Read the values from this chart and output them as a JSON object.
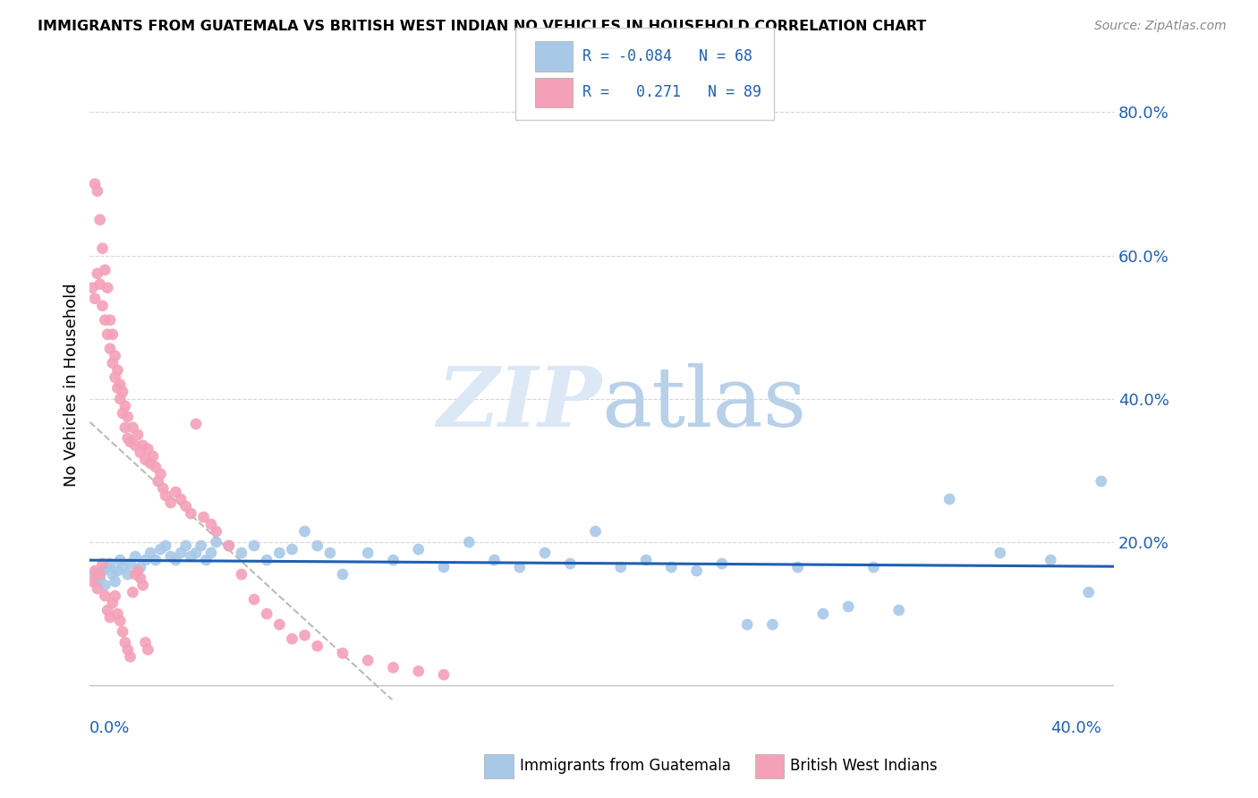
{
  "title": "IMMIGRANTS FROM GUATEMALA VS BRITISH WEST INDIAN NO VEHICLES IN HOUSEHOLD CORRELATION CHART",
  "source": "Source: ZipAtlas.com",
  "ylabel": "No Vehicles in Household",
  "xlim": [
    0.0,
    0.405
  ],
  "ylim": [
    -0.02,
    0.86
  ],
  "blue_color": "#a8c8e8",
  "pink_color": "#f4a0b8",
  "trend_blue_color": "#2060b0",
  "grid_color": "#cccccc",
  "watermark_color": "#dce8f5",
  "blue_R": -0.084,
  "blue_N": 68,
  "pink_R": 0.271,
  "pink_N": 89,
  "blue_scatter_x": [
    0.002,
    0.003,
    0.004,
    0.005,
    0.006,
    0.007,
    0.008,
    0.009,
    0.01,
    0.011,
    0.012,
    0.013,
    0.015,
    0.016,
    0.018,
    0.02,
    0.022,
    0.024,
    0.026,
    0.028,
    0.03,
    0.032,
    0.034,
    0.036,
    0.038,
    0.04,
    0.042,
    0.044,
    0.046,
    0.048,
    0.05,
    0.055,
    0.06,
    0.065,
    0.07,
    0.075,
    0.08,
    0.085,
    0.09,
    0.095,
    0.1,
    0.11,
    0.12,
    0.13,
    0.14,
    0.15,
    0.16,
    0.17,
    0.18,
    0.19,
    0.2,
    0.21,
    0.22,
    0.23,
    0.24,
    0.25,
    0.26,
    0.27,
    0.28,
    0.29,
    0.3,
    0.31,
    0.32,
    0.34,
    0.36,
    0.38,
    0.395,
    0.4
  ],
  "blue_scatter_y": [
    0.155,
    0.145,
    0.15,
    0.16,
    0.14,
    0.165,
    0.17,
    0.155,
    0.145,
    0.16,
    0.175,
    0.165,
    0.155,
    0.17,
    0.18,
    0.165,
    0.175,
    0.185,
    0.175,
    0.19,
    0.195,
    0.18,
    0.175,
    0.185,
    0.195,
    0.18,
    0.185,
    0.195,
    0.175,
    0.185,
    0.2,
    0.195,
    0.185,
    0.195,
    0.175,
    0.185,
    0.19,
    0.215,
    0.195,
    0.185,
    0.155,
    0.185,
    0.175,
    0.19,
    0.165,
    0.2,
    0.175,
    0.165,
    0.185,
    0.17,
    0.215,
    0.165,
    0.175,
    0.165,
    0.16,
    0.17,
    0.085,
    0.085,
    0.165,
    0.1,
    0.11,
    0.165,
    0.105,
    0.26,
    0.185,
    0.175,
    0.13,
    0.285
  ],
  "pink_scatter_x": [
    0.001,
    0.002,
    0.002,
    0.003,
    0.003,
    0.004,
    0.004,
    0.005,
    0.005,
    0.006,
    0.006,
    0.007,
    0.007,
    0.008,
    0.008,
    0.009,
    0.009,
    0.01,
    0.01,
    0.011,
    0.011,
    0.012,
    0.012,
    0.013,
    0.013,
    0.014,
    0.014,
    0.015,
    0.015,
    0.016,
    0.017,
    0.018,
    0.019,
    0.02,
    0.021,
    0.022,
    0.023,
    0.024,
    0.025,
    0.026,
    0.027,
    0.028,
    0.029,
    0.03,
    0.032,
    0.034,
    0.036,
    0.038,
    0.04,
    0.042,
    0.045,
    0.048,
    0.05,
    0.055,
    0.06,
    0.065,
    0.07,
    0.075,
    0.08,
    0.085,
    0.09,
    0.1,
    0.11,
    0.12,
    0.13,
    0.14,
    0.001,
    0.002,
    0.003,
    0.004,
    0.005,
    0.006,
    0.007,
    0.008,
    0.009,
    0.01,
    0.011,
    0.012,
    0.013,
    0.014,
    0.015,
    0.016,
    0.017,
    0.018,
    0.019,
    0.02,
    0.021,
    0.022,
    0.023
  ],
  "pink_scatter_y": [
    0.555,
    0.54,
    0.7,
    0.575,
    0.69,
    0.56,
    0.65,
    0.53,
    0.61,
    0.51,
    0.58,
    0.49,
    0.555,
    0.47,
    0.51,
    0.45,
    0.49,
    0.43,
    0.46,
    0.415,
    0.44,
    0.4,
    0.42,
    0.38,
    0.41,
    0.36,
    0.39,
    0.345,
    0.375,
    0.34,
    0.36,
    0.335,
    0.35,
    0.325,
    0.335,
    0.315,
    0.33,
    0.31,
    0.32,
    0.305,
    0.285,
    0.295,
    0.275,
    0.265,
    0.255,
    0.27,
    0.26,
    0.25,
    0.24,
    0.365,
    0.235,
    0.225,
    0.215,
    0.195,
    0.155,
    0.12,
    0.1,
    0.085,
    0.065,
    0.07,
    0.055,
    0.045,
    0.035,
    0.025,
    0.02,
    0.015,
    0.145,
    0.16,
    0.135,
    0.155,
    0.17,
    0.125,
    0.105,
    0.095,
    0.115,
    0.125,
    0.1,
    0.09,
    0.075,
    0.06,
    0.05,
    0.04,
    0.13,
    0.155,
    0.16,
    0.15,
    0.14,
    0.06,
    0.05
  ]
}
